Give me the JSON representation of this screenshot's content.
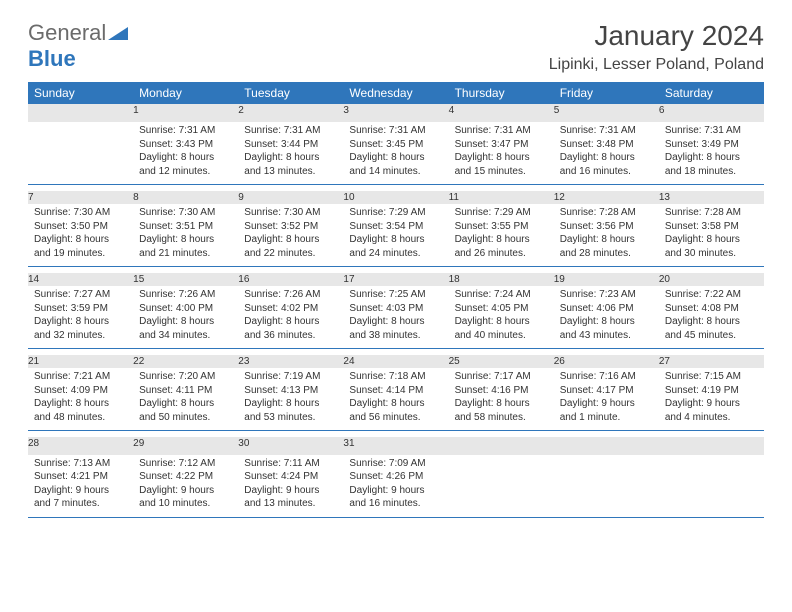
{
  "logo": {
    "general": "General",
    "blue": "Blue"
  },
  "title": "January 2024",
  "location": "Lipinki, Lesser Poland, Poland",
  "colors": {
    "header_bg": "#2f76bb",
    "header_text": "#ffffff",
    "daynum_bg": "#e7e7e7",
    "row_divider": "#2f76bb",
    "text": "#333333",
    "logo_blue": "#2f76bb",
    "logo_gray": "#6b6b6b"
  },
  "columns": [
    "Sunday",
    "Monday",
    "Tuesday",
    "Wednesday",
    "Thursday",
    "Friday",
    "Saturday"
  ],
  "start_offset": 1,
  "days": [
    {
      "n": "1",
      "sr": "7:31 AM",
      "ss": "3:43 PM",
      "dl": "8 hours and 12 minutes."
    },
    {
      "n": "2",
      "sr": "7:31 AM",
      "ss": "3:44 PM",
      "dl": "8 hours and 13 minutes."
    },
    {
      "n": "3",
      "sr": "7:31 AM",
      "ss": "3:45 PM",
      "dl": "8 hours and 14 minutes."
    },
    {
      "n": "4",
      "sr": "7:31 AM",
      "ss": "3:47 PM",
      "dl": "8 hours and 15 minutes."
    },
    {
      "n": "5",
      "sr": "7:31 AM",
      "ss": "3:48 PM",
      "dl": "8 hours and 16 minutes."
    },
    {
      "n": "6",
      "sr": "7:31 AM",
      "ss": "3:49 PM",
      "dl": "8 hours and 18 minutes."
    },
    {
      "n": "7",
      "sr": "7:30 AM",
      "ss": "3:50 PM",
      "dl": "8 hours and 19 minutes."
    },
    {
      "n": "8",
      "sr": "7:30 AM",
      "ss": "3:51 PM",
      "dl": "8 hours and 21 minutes."
    },
    {
      "n": "9",
      "sr": "7:30 AM",
      "ss": "3:52 PM",
      "dl": "8 hours and 22 minutes."
    },
    {
      "n": "10",
      "sr": "7:29 AM",
      "ss": "3:54 PM",
      "dl": "8 hours and 24 minutes."
    },
    {
      "n": "11",
      "sr": "7:29 AM",
      "ss": "3:55 PM",
      "dl": "8 hours and 26 minutes."
    },
    {
      "n": "12",
      "sr": "7:28 AM",
      "ss": "3:56 PM",
      "dl": "8 hours and 28 minutes."
    },
    {
      "n": "13",
      "sr": "7:28 AM",
      "ss": "3:58 PM",
      "dl": "8 hours and 30 minutes."
    },
    {
      "n": "14",
      "sr": "7:27 AM",
      "ss": "3:59 PM",
      "dl": "8 hours and 32 minutes."
    },
    {
      "n": "15",
      "sr": "7:26 AM",
      "ss": "4:00 PM",
      "dl": "8 hours and 34 minutes."
    },
    {
      "n": "16",
      "sr": "7:26 AM",
      "ss": "4:02 PM",
      "dl": "8 hours and 36 minutes."
    },
    {
      "n": "17",
      "sr": "7:25 AM",
      "ss": "4:03 PM",
      "dl": "8 hours and 38 minutes."
    },
    {
      "n": "18",
      "sr": "7:24 AM",
      "ss": "4:05 PM",
      "dl": "8 hours and 40 minutes."
    },
    {
      "n": "19",
      "sr": "7:23 AM",
      "ss": "4:06 PM",
      "dl": "8 hours and 43 minutes."
    },
    {
      "n": "20",
      "sr": "7:22 AM",
      "ss": "4:08 PM",
      "dl": "8 hours and 45 minutes."
    },
    {
      "n": "21",
      "sr": "7:21 AM",
      "ss": "4:09 PM",
      "dl": "8 hours and 48 minutes."
    },
    {
      "n": "22",
      "sr": "7:20 AM",
      "ss": "4:11 PM",
      "dl": "8 hours and 50 minutes."
    },
    {
      "n": "23",
      "sr": "7:19 AM",
      "ss": "4:13 PM",
      "dl": "8 hours and 53 minutes."
    },
    {
      "n": "24",
      "sr": "7:18 AM",
      "ss": "4:14 PM",
      "dl": "8 hours and 56 minutes."
    },
    {
      "n": "25",
      "sr": "7:17 AM",
      "ss": "4:16 PM",
      "dl": "8 hours and 58 minutes."
    },
    {
      "n": "26",
      "sr": "7:16 AM",
      "ss": "4:17 PM",
      "dl": "9 hours and 1 minute."
    },
    {
      "n": "27",
      "sr": "7:15 AM",
      "ss": "4:19 PM",
      "dl": "9 hours and 4 minutes."
    },
    {
      "n": "28",
      "sr": "7:13 AM",
      "ss": "4:21 PM",
      "dl": "9 hours and 7 minutes."
    },
    {
      "n": "29",
      "sr": "7:12 AM",
      "ss": "4:22 PM",
      "dl": "9 hours and 10 minutes."
    },
    {
      "n": "30",
      "sr": "7:11 AM",
      "ss": "4:24 PM",
      "dl": "9 hours and 13 minutes."
    },
    {
      "n": "31",
      "sr": "7:09 AM",
      "ss": "4:26 PM",
      "dl": "9 hours and 16 minutes."
    }
  ],
  "labels": {
    "sunrise": "Sunrise:",
    "sunset": "Sunset:",
    "daylight": "Daylight:"
  }
}
